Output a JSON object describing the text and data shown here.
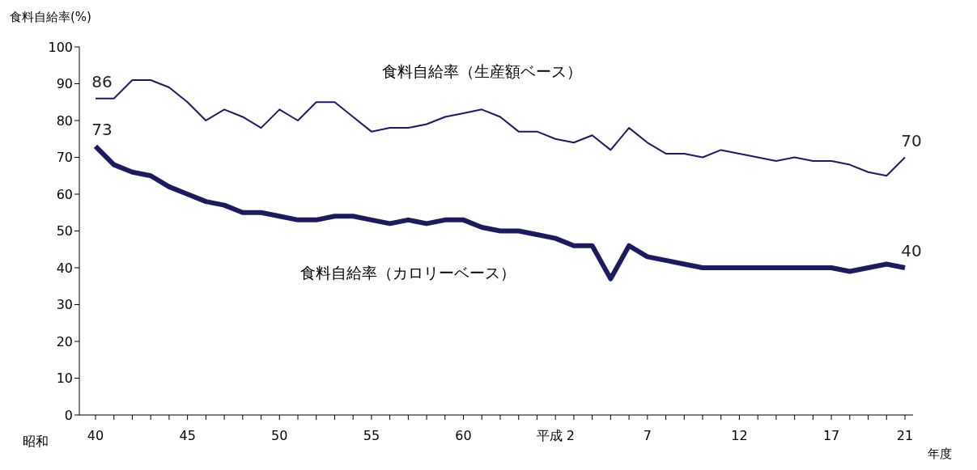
{
  "chart_data": {
    "type": "line",
    "ylabel": "食料自給率(%)",
    "xlabel": "年度",
    "annotations": [
      "昭和"
    ],
    "categories": [
      "40",
      null,
      null,
      null,
      null,
      "45",
      null,
      null,
      null,
      null,
      "50",
      null,
      null,
      null,
      null,
      "55",
      null,
      null,
      null,
      null,
      "60",
      null,
      null,
      null,
      null,
      "平成 2",
      null,
      null,
      null,
      null,
      "7",
      null,
      null,
      null,
      null,
      "12",
      null,
      null,
      null,
      null,
      "17",
      null,
      null,
      null,
      "21"
    ],
    "series": [
      {
        "name": "食料自給率（生産額ベース）",
        "color": "#1c1c5c",
        "values": [
          86,
          86,
          91,
          91,
          89,
          85,
          80,
          83,
          81,
          78,
          83,
          80,
          85,
          85,
          81,
          77,
          78,
          78,
          79,
          81,
          82,
          83,
          81,
          77,
          77,
          75,
          74,
          76,
          72,
          78,
          74,
          71,
          71,
          70,
          72,
          71,
          70,
          69,
          70,
          69,
          69,
          68,
          66,
          65,
          70
        ],
        "value_labels": [
          "86",
          null,
          null,
          null,
          null,
          null,
          null,
          null,
          null,
          null,
          null,
          null,
          null,
          null,
          null,
          null,
          null,
          null,
          null,
          null,
          null,
          null,
          null,
          null,
          null,
          null,
          null,
          null,
          null,
          null,
          null,
          null,
          null,
          null,
          null,
          null,
          null,
          null,
          null,
          null,
          null,
          null,
          null,
          null,
          "70"
        ]
      },
      {
        "name": "食料自給率（カロリーベース）",
        "color": "#1c1c5c",
        "values": [
          73,
          68,
          66,
          65,
          62,
          60,
          58,
          57,
          55,
          55,
          54,
          53,
          53,
          54,
          54,
          53,
          52,
          53,
          52,
          53,
          53,
          51,
          50,
          50,
          49,
          48,
          46,
          46,
          37,
          46,
          43,
          42,
          41,
          40,
          40,
          40,
          40,
          40,
          40,
          40,
          40,
          39,
          40,
          41,
          40
        ],
        "value_labels": [
          "73",
          null,
          null,
          null,
          null,
          null,
          null,
          null,
          null,
          null,
          null,
          null,
          null,
          null,
          null,
          null,
          null,
          null,
          null,
          null,
          null,
          null,
          null,
          null,
          null,
          null,
          null,
          null,
          null,
          null,
          null,
          null,
          null,
          null,
          null,
          null,
          null,
          null,
          null,
          null,
          null,
          null,
          null,
          null,
          "40"
        ]
      }
    ],
    "ylim": [
      0,
      100
    ],
    "yticks": [
      0,
      10,
      20,
      30,
      40,
      50,
      60,
      70,
      80,
      90,
      100
    ],
    "marker": "none",
    "line_style": "solid"
  }
}
